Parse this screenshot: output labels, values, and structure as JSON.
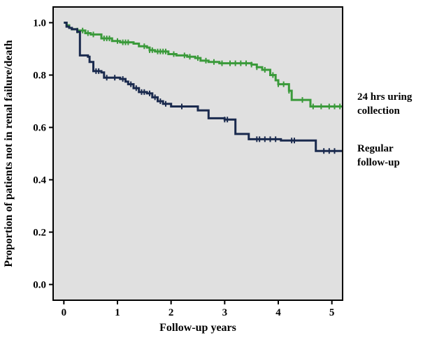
{
  "chart_data": {
    "type": "line",
    "subtype": "kaplan-meier step curve",
    "xlabel": "Follow-up years",
    "ylabel": "Proportion of patients not in renal failure/death",
    "xlim": [
      -0.2,
      5.2
    ],
    "ylim": [
      -0.06,
      1.06
    ],
    "x_ticks": [
      0,
      1,
      2,
      3,
      4,
      5
    ],
    "y_ticks": [
      0.0,
      0.2,
      0.4,
      0.6,
      0.8,
      1.0
    ],
    "x_tick_labels": [
      "0",
      "1",
      "2",
      "3",
      "4",
      "5"
    ],
    "y_tick_labels": [
      "0.0",
      "0.2",
      "0.4",
      "0.6",
      "0.8",
      "1.0"
    ],
    "grid": false,
    "plot_background": "#e0e0e0",
    "legend_placement": "right of plot, at end of each curve",
    "series": [
      {
        "legend_lines": [
          "24 hrs uring",
          "collection"
        ],
        "color": "#3a9a3a",
        "points": [
          [
            0,
            1.0
          ],
          [
            0.05,
            0.99
          ],
          [
            0.1,
            0.98
          ],
          [
            0.15,
            0.975
          ],
          [
            0.25,
            0.97
          ],
          [
            0.4,
            0.96
          ],
          [
            0.5,
            0.955
          ],
          [
            0.7,
            0.94
          ],
          [
            0.9,
            0.93
          ],
          [
            1.05,
            0.925
          ],
          [
            1.3,
            0.92
          ],
          [
            1.4,
            0.91
          ],
          [
            1.55,
            0.905
          ],
          [
            1.6,
            0.895
          ],
          [
            1.7,
            0.89
          ],
          [
            1.95,
            0.88
          ],
          [
            2.1,
            0.875
          ],
          [
            2.3,
            0.87
          ],
          [
            2.45,
            0.865
          ],
          [
            2.55,
            0.855
          ],
          [
            2.7,
            0.85
          ],
          [
            2.9,
            0.845
          ],
          [
            3.5,
            0.84
          ],
          [
            3.6,
            0.83
          ],
          [
            3.7,
            0.82
          ],
          [
            3.85,
            0.8
          ],
          [
            3.95,
            0.78
          ],
          [
            4.0,
            0.765
          ],
          [
            4.2,
            0.74
          ],
          [
            4.25,
            0.715
          ],
          [
            4.25,
            0.705
          ],
          [
            4.5,
            0.705
          ],
          [
            4.6,
            0.68
          ],
          [
            5.2,
            0.68
          ]
        ],
        "censor_marks_x": [
          0.25,
          0.35,
          0.45,
          0.55,
          0.75,
          0.8,
          0.85,
          1.0,
          1.1,
          1.15,
          1.2,
          1.5,
          1.6,
          1.65,
          1.75,
          1.8,
          1.85,
          1.9,
          2.05,
          2.25,
          2.35,
          2.5,
          2.65,
          2.8,
          2.95,
          3.1,
          3.2,
          3.3,
          3.4,
          3.5,
          3.6,
          3.75,
          3.9,
          4.0,
          4.1,
          4.2,
          4.45,
          4.65,
          4.8,
          4.95,
          5.05,
          5.15
        ]
      },
      {
        "legend_lines": [
          "Regular",
          "follow-up"
        ],
        "color": "#1a2a4e",
        "points": [
          [
            0,
            1.0
          ],
          [
            0.05,
            0.985
          ],
          [
            0.1,
            0.98
          ],
          [
            0.15,
            0.975
          ],
          [
            0.25,
            0.965
          ],
          [
            0.3,
            0.875
          ],
          [
            0.45,
            0.87
          ],
          [
            0.48,
            0.85
          ],
          [
            0.55,
            0.815
          ],
          [
            0.7,
            0.81
          ],
          [
            0.75,
            0.79
          ],
          [
            1.05,
            0.785
          ],
          [
            1.15,
            0.775
          ],
          [
            1.2,
            0.765
          ],
          [
            1.3,
            0.75
          ],
          [
            1.4,
            0.735
          ],
          [
            1.55,
            0.73
          ],
          [
            1.65,
            0.715
          ],
          [
            1.75,
            0.7
          ],
          [
            1.85,
            0.69
          ],
          [
            2.0,
            0.68
          ],
          [
            2.5,
            0.665
          ],
          [
            2.7,
            0.635
          ],
          [
            3.0,
            0.63
          ],
          [
            3.2,
            0.575
          ],
          [
            3.45,
            0.555
          ],
          [
            4.05,
            0.55
          ],
          [
            4.35,
            0.55
          ],
          [
            4.7,
            0.51
          ],
          [
            5.2,
            0.51
          ]
        ],
        "censor_marks_x": [
          0.6,
          0.65,
          0.8,
          0.95,
          1.1,
          1.25,
          1.35,
          1.45,
          1.5,
          1.6,
          1.7,
          1.8,
          1.9,
          2.2,
          3.0,
          3.05,
          3.6,
          3.65,
          3.75,
          3.85,
          3.95,
          4.25,
          4.3,
          4.85,
          4.95,
          5.05
        ]
      }
    ]
  }
}
